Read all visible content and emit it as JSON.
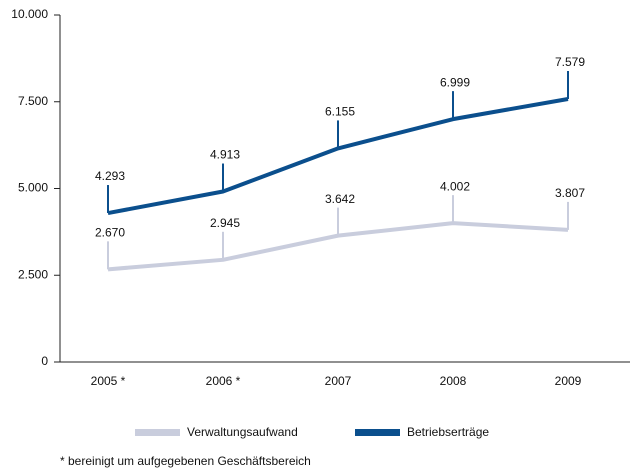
{
  "chart_data": {
    "type": "line",
    "categories": [
      "2005 *",
      "2006 *",
      "2007",
      "2008",
      "2009"
    ],
    "series": [
      {
        "name": "Verwaltungsaufwand",
        "color": "#c9cddd",
        "values": [
          2670,
          2945,
          3642,
          4002,
          3807
        ],
        "value_labels": [
          "2.670",
          "2.945",
          "3.642",
          "4.002",
          "3.807"
        ]
      },
      {
        "name": "Betriebserträge",
        "color": "#0b4f8d",
        "values": [
          4293,
          4913,
          6155,
          6999,
          7579
        ],
        "value_labels": [
          "4.293",
          "4.913",
          "6.155",
          "6.999",
          "7.579"
        ]
      }
    ],
    "ylim": [
      0,
      10000
    ],
    "yticks": [
      0,
      {
        "value": 2500,
        "label": "2.500"
      },
      {
        "value": 5000,
        "label": "5.000"
      },
      {
        "value": 7500,
        "label": "7.500"
      },
      {
        "value": 10000,
        "label": "10.000"
      }
    ],
    "footnote": "* bereinigt um aufgegebenen Geschäftsbereich"
  }
}
